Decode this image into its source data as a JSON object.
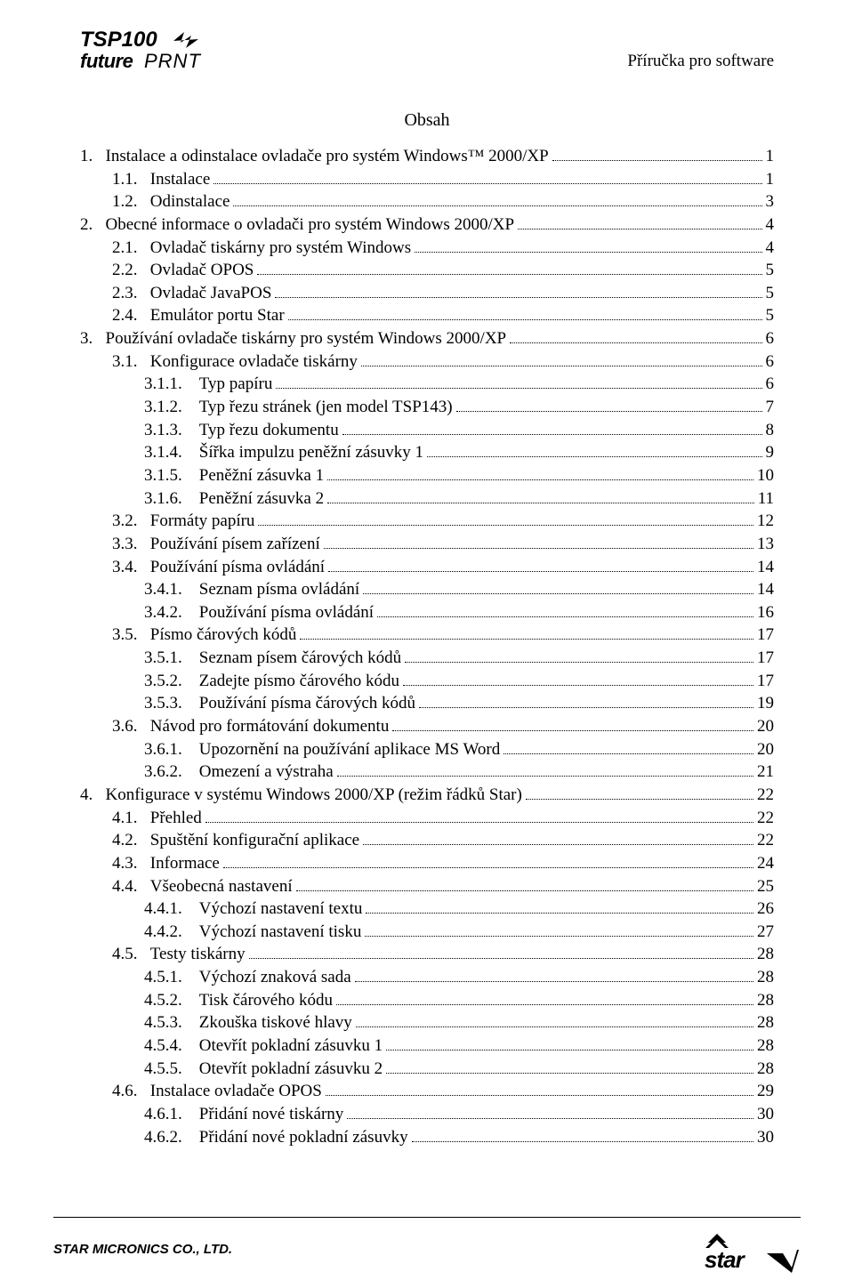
{
  "header": {
    "right_text": "Příručka pro software"
  },
  "title": "Obsah",
  "toc": [
    {
      "indent": 0,
      "num": "1.",
      "title": "Instalace a odinstalace ovladače pro systém Windows™ 2000/XP",
      "page": "1"
    },
    {
      "indent": 1,
      "num": "1.1.",
      "title": "Instalace",
      "page": "1"
    },
    {
      "indent": 1,
      "num": "1.2.",
      "title": "Odinstalace",
      "page": "3"
    },
    {
      "indent": 0,
      "num": "2.",
      "title": "Obecné informace o ovladači pro systém Windows 2000/XP",
      "page": "4"
    },
    {
      "indent": 1,
      "num": "2.1.",
      "title": "Ovladač tiskárny pro systém Windows",
      "page": "4"
    },
    {
      "indent": 1,
      "num": "2.2.",
      "title": "Ovladač OPOS",
      "page": "5"
    },
    {
      "indent": 1,
      "num": "2.3.",
      "title": "Ovladač JavaPOS",
      "page": "5"
    },
    {
      "indent": 1,
      "num": "2.4.",
      "title": "Emulátor portu Star",
      "page": "5"
    },
    {
      "indent": 0,
      "num": "3.",
      "title": "Používání ovladače tiskárny pro systém Windows 2000/XP",
      "page": "6"
    },
    {
      "indent": 1,
      "num": "3.1.",
      "title": "Konfigurace ovladače tiskárny",
      "page": "6"
    },
    {
      "indent": 2,
      "num": "3.1.1.",
      "title": "Typ papíru",
      "page": "6"
    },
    {
      "indent": 2,
      "num": "3.1.2.",
      "title": "Typ řezu stránek (jen model TSP143)",
      "page": "7"
    },
    {
      "indent": 2,
      "num": "3.1.3.",
      "title": "Typ řezu dokumentu",
      "page": "8"
    },
    {
      "indent": 2,
      "num": "3.1.4.",
      "title": "Šířka impulzu peněžní zásuvky 1",
      "page": "9"
    },
    {
      "indent": 2,
      "num": "3.1.5.",
      "title": "Peněžní zásuvka 1",
      "page": "10"
    },
    {
      "indent": 2,
      "num": "3.1.6.",
      "title": "Peněžní zásuvka 2",
      "page": "11"
    },
    {
      "indent": 1,
      "num": "3.2.",
      "title": "Formáty papíru",
      "page": "12"
    },
    {
      "indent": 1,
      "num": "3.3.",
      "title": "Používání písem zařízení",
      "page": "13"
    },
    {
      "indent": 1,
      "num": "3.4.",
      "title": "Používání písma ovládání",
      "page": "14"
    },
    {
      "indent": 2,
      "num": "3.4.1.",
      "title": "Seznam písma ovládání",
      "page": "14"
    },
    {
      "indent": 2,
      "num": "3.4.2.",
      "title": "Používání písma ovládání",
      "page": "16"
    },
    {
      "indent": 1,
      "num": "3.5.",
      "title": "Písmo čárových kódů",
      "page": "17"
    },
    {
      "indent": 2,
      "num": "3.5.1.",
      "title": "Seznam písem čárových kódů",
      "page": "17"
    },
    {
      "indent": 2,
      "num": "3.5.2.",
      "title": "Zadejte písmo čárového kódu",
      "page": "17"
    },
    {
      "indent": 2,
      "num": "3.5.3.",
      "title": "Používání písma čárových kódů",
      "page": "19"
    },
    {
      "indent": 1,
      "num": "3.6.",
      "title": "Návod pro formátování dokumentu",
      "page": "20"
    },
    {
      "indent": 2,
      "num": "3.6.1.",
      "title": "Upozornění na používání aplikace MS Word",
      "page": "20"
    },
    {
      "indent": 2,
      "num": "3.6.2.",
      "title": "Omezení a výstraha",
      "page": "21"
    },
    {
      "indent": 0,
      "num": "4.",
      "title": "Konfigurace v systému Windows 2000/XP (režim řádků Star)",
      "page": "22"
    },
    {
      "indent": 1,
      "num": "4.1.",
      "title": "Přehled",
      "page": "22"
    },
    {
      "indent": 1,
      "num": "4.2.",
      "title": "Spuštění konfigurační aplikace",
      "page": "22"
    },
    {
      "indent": 1,
      "num": "4.3.",
      "title": "Informace",
      "page": "24"
    },
    {
      "indent": 1,
      "num": "4.4.",
      "title": "Všeobecná nastavení",
      "page": "25"
    },
    {
      "indent": 2,
      "num": "4.4.1.",
      "title": "Výchozí nastavení textu",
      "page": "26"
    },
    {
      "indent": 2,
      "num": "4.4.2.",
      "title": "Výchozí nastavení tisku",
      "page": "27"
    },
    {
      "indent": 1,
      "num": "4.5.",
      "title": "Testy tiskárny",
      "page": "28"
    },
    {
      "indent": 2,
      "num": "4.5.1.",
      "title": "Výchozí znaková sada",
      "page": "28"
    },
    {
      "indent": 2,
      "num": "4.5.2.",
      "title": "Tisk čárového kódu",
      "page": "28"
    },
    {
      "indent": 2,
      "num": "4.5.3.",
      "title": "Zkouška tiskové hlavy",
      "page": "28"
    },
    {
      "indent": 2,
      "num": "4.5.4.",
      "title": "Otevřít pokladní zásuvku 1",
      "page": "28"
    },
    {
      "indent": 2,
      "num": "4.5.5.",
      "title": "Otevřít pokladní zásuvku 2",
      "page": "28"
    },
    {
      "indent": 1,
      "num": "4.6.",
      "title": "Instalace ovladače OPOS",
      "page": "29"
    },
    {
      "indent": 2,
      "num": "4.6.1.",
      "title": "Přidání nové tiskárny",
      "page": "30"
    },
    {
      "indent": 2,
      "num": "4.6.2.",
      "title": "Přidání nové pokladní zásuvky",
      "page": "30"
    }
  ],
  "footer": {
    "company": "STAR MICRONICS CO., LTD."
  }
}
